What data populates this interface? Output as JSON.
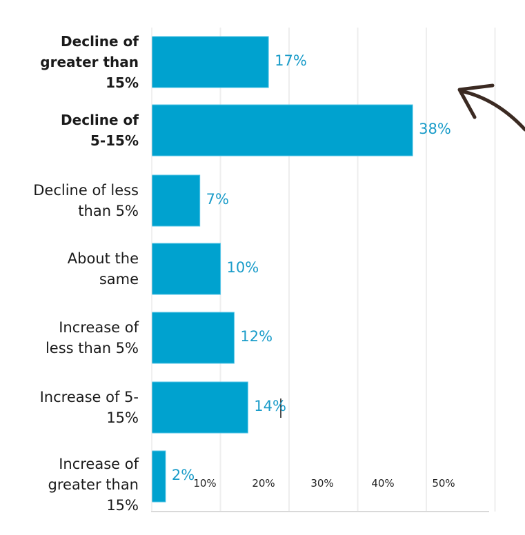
{
  "chart_data": {
    "type": "bar",
    "orientation": "horizontal",
    "categories": [
      "Decline of greater than 15%",
      "Decline of 5-15%",
      "Decline of less than 5%",
      "About the same",
      "Increase of less than 5%",
      "Increase of 5-15%",
      "Increase of greater than 15%"
    ],
    "category_lines": [
      [
        "Decline of",
        "greater than",
        "15%"
      ],
      [
        "Decline of",
        "5-15%"
      ],
      [
        "Decline of less",
        "than 5%"
      ],
      [
        "About the",
        "same"
      ],
      [
        "Increase of",
        "less than 5%"
      ],
      [
        "Increase of 5-",
        "15%"
      ],
      [
        "Increase of",
        "greater than",
        "15%"
      ]
    ],
    "bold_categories": [
      true,
      true,
      false,
      false,
      false,
      false,
      false
    ],
    "values": [
      17,
      38,
      7,
      10,
      12,
      14,
      2
    ],
    "value_labels": [
      "17%",
      "38%",
      "7%",
      "10%",
      "12%",
      "14%",
      "2%"
    ],
    "tick_labels": [
      "10%",
      "20%",
      "30%",
      "40%",
      "50%"
    ],
    "ticks": [
      10,
      20,
      30,
      40,
      50
    ],
    "xlim": [
      0,
      50
    ],
    "grid": true,
    "bar_color": "#00a2cf",
    "value_label_color": "#1a9cc9",
    "annotation_arrow_color": "#3b2a22"
  }
}
